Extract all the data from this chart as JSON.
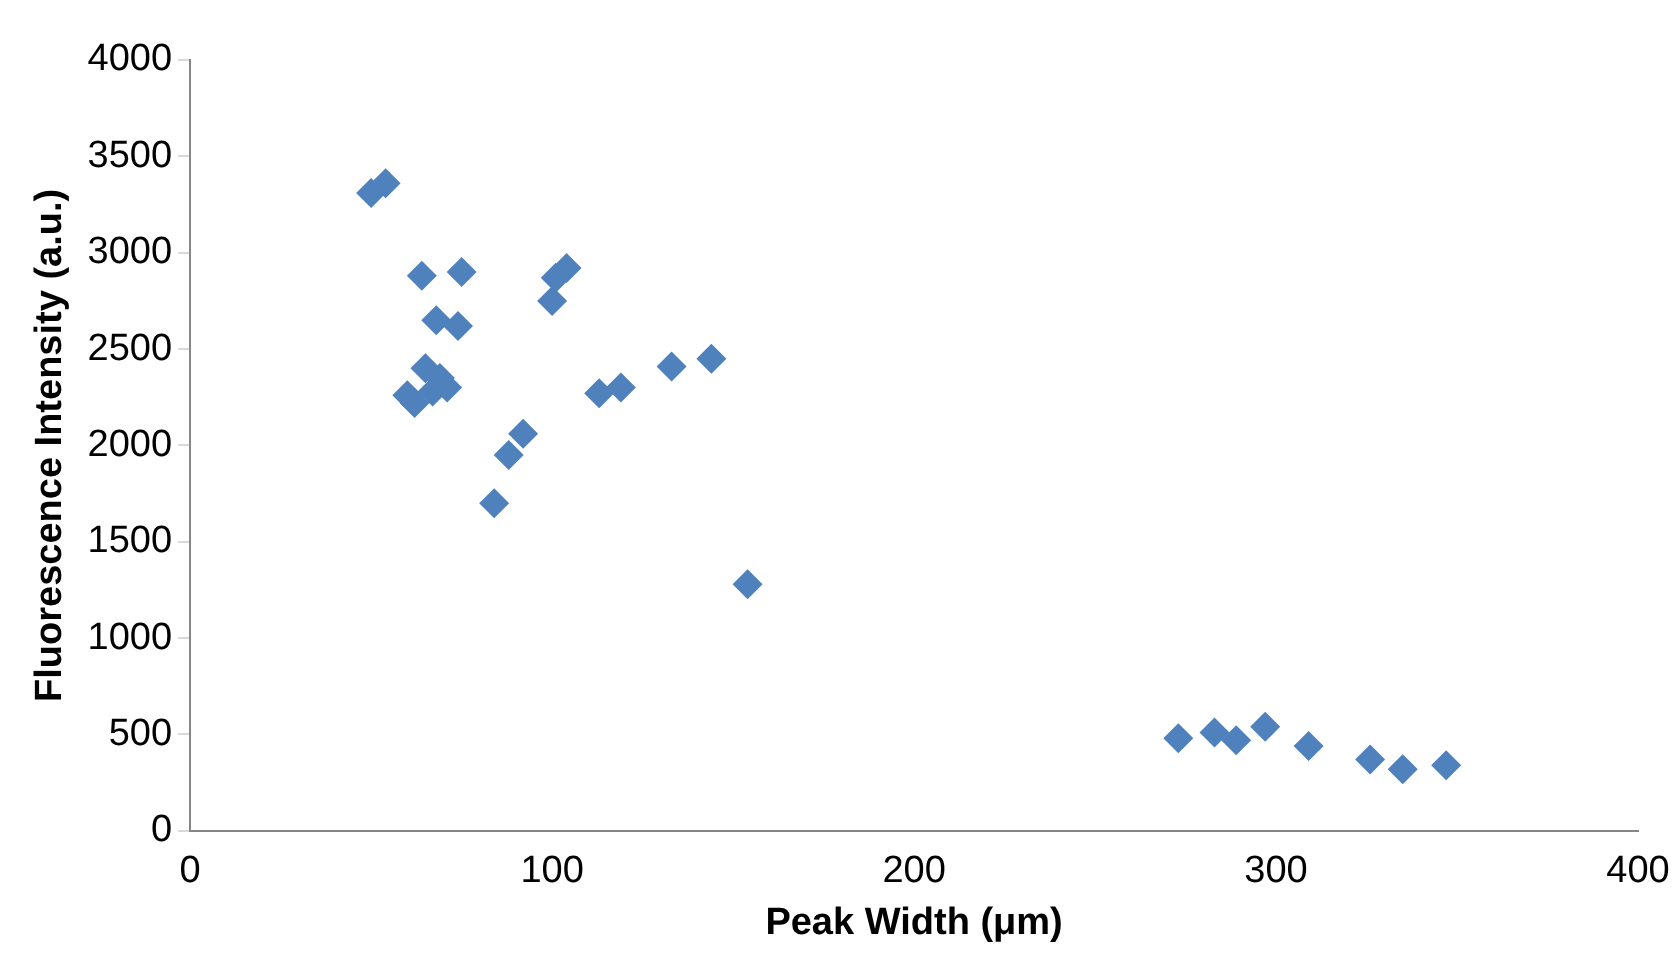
{
  "chart_data": {
    "type": "scatter",
    "xlabel": "Peak Width (μm)",
    "ylabel": "Fluorescence Intensity (a.u.)",
    "x": [
      50,
      54,
      64,
      75,
      68,
      74,
      100,
      101,
      104,
      65,
      60,
      62,
      67,
      71,
      69,
      84,
      88,
      92,
      113,
      119,
      133,
      144,
      154,
      273,
      283,
      289,
      297,
      309,
      326,
      335,
      347
    ],
    "series": [
      {
        "color": "#4f81bd",
        "values": [
          3310,
          3360,
          2880,
          2900,
          2650,
          2620,
          2750,
          2870,
          2920,
          2400,
          2260,
          2220,
          2280,
          2300,
          2350,
          1700,
          1950,
          2060,
          2270,
          2300,
          2410,
          2450,
          1280,
          480,
          510,
          470,
          540,
          440,
          370,
          320,
          340
        ]
      }
    ],
    "xlim": [
      0,
      400
    ],
    "xticks": [
      0,
      100,
      200,
      300,
      400
    ],
    "ylim": [
      0,
      4000
    ],
    "yticks": [
      0,
      500,
      1000,
      1500,
      2000,
      2500,
      3000,
      3500,
      4000
    ],
    "grid": false,
    "legend": false,
    "marker": "diamond"
  }
}
